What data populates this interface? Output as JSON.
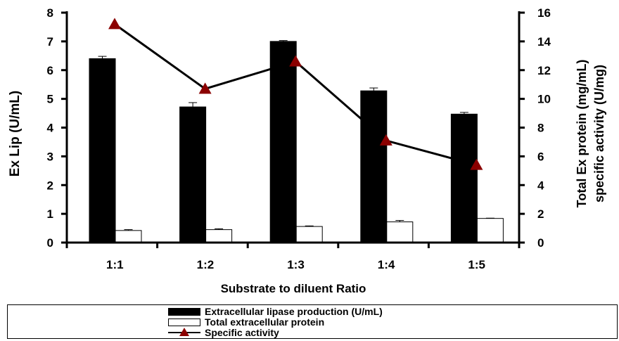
{
  "chart_data": {
    "type": "bar",
    "title": "",
    "xlabel": "Substrate to diluent Ratio",
    "ylabel": "Ex Lip (U/mL)",
    "y2label_line1": "Total Ex protein (mg/mL)",
    "y2label_line2": "specific activity (U/mg)",
    "categories": [
      "1:1",
      "1:2",
      "1:3",
      "1:4",
      "1:5"
    ],
    "ylim": [
      0,
      8
    ],
    "y2lim": [
      0,
      16
    ],
    "yticks": [
      "0",
      "1",
      "2",
      "3",
      "4",
      "5",
      "6",
      "7",
      "8"
    ],
    "y2ticks": [
      "0",
      "2",
      "4",
      "6",
      "8",
      "10",
      "12",
      "14",
      "16"
    ],
    "series": [
      {
        "name": "Extracellular lipase production (U/mL)",
        "kind": "bar",
        "axis": "left",
        "color": "#000000",
        "values": [
          6.4,
          4.72,
          7.0,
          5.28,
          4.47
        ],
        "errors": [
          0.08,
          0.15,
          0.03,
          0.1,
          0.06
        ]
      },
      {
        "name": "Total extracellular protein",
        "kind": "bar",
        "axis": "left",
        "color": "#ffffff",
        "values": [
          0.42,
          0.45,
          0.56,
          0.72,
          0.84
        ],
        "errors": [
          0.03,
          0.03,
          0.02,
          0.05,
          0.01
        ]
      },
      {
        "name": "Specific activity",
        "kind": "line",
        "axis": "right",
        "color": "#000000",
        "marker_color": "#8b0000",
        "values": [
          15.2,
          10.7,
          12.6,
          7.1,
          5.4
        ]
      }
    ],
    "legend_position": "bottom"
  }
}
